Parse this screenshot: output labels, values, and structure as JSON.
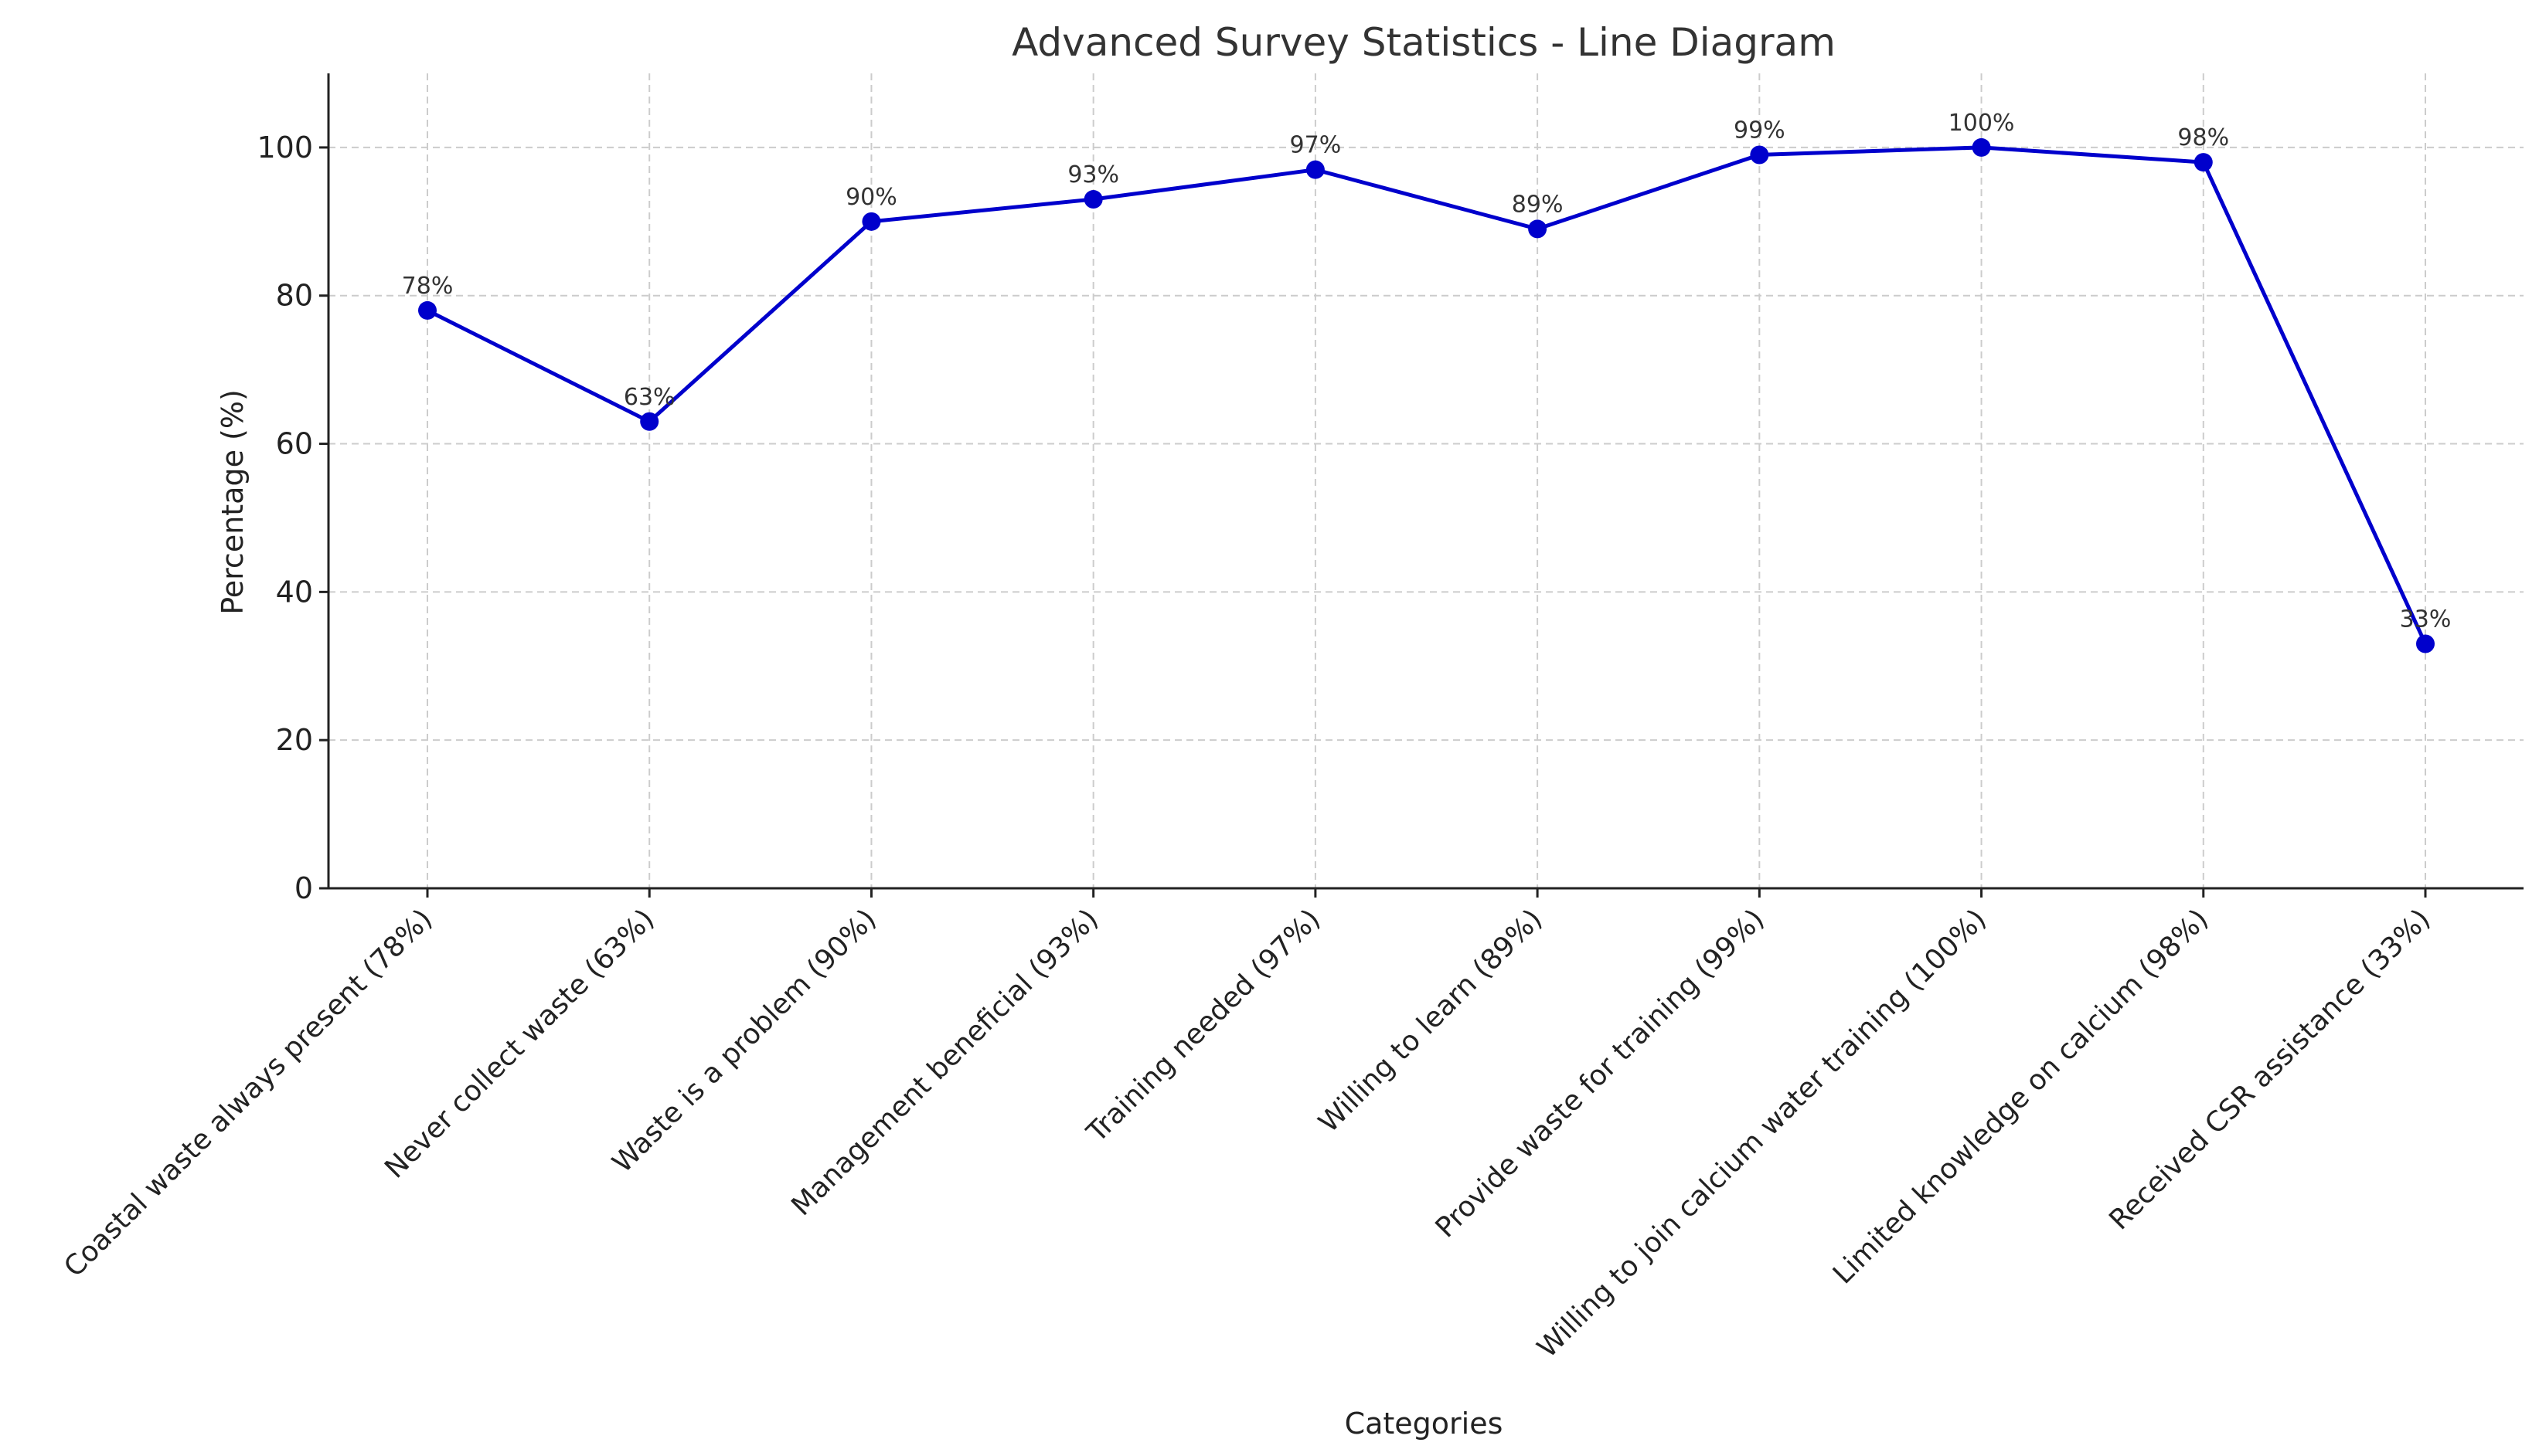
{
  "chart_data": {
    "type": "line",
    "title": "Advanced Survey Statistics - Line Diagram",
    "xlabel": "Categories",
    "ylabel": "Percentage (%)",
    "ylim": [
      0,
      110
    ],
    "yticks": [
      0,
      20,
      40,
      60,
      80,
      100
    ],
    "grid": true,
    "categories": [
      "Coastal waste always present (78%)",
      "Never collect waste (63%)",
      "Waste is a problem (90%)",
      "Management beneficial (93%)",
      "Training needed (97%)",
      "Willing to learn (89%)",
      "Provide waste for training (99%)",
      "Willing to join calcium water training (100%)",
      "Limited knowledge on calcium (98%)",
      "Received CSR assistance (33%)"
    ],
    "values": [
      78,
      63,
      90,
      93,
      97,
      89,
      99,
      100,
      98,
      33
    ],
    "data_labels": [
      "78%",
      "63%",
      "90%",
      "93%",
      "97%",
      "89%",
      "99%",
      "100%",
      "98%",
      "33%"
    ],
    "color": "#0000cc"
  }
}
